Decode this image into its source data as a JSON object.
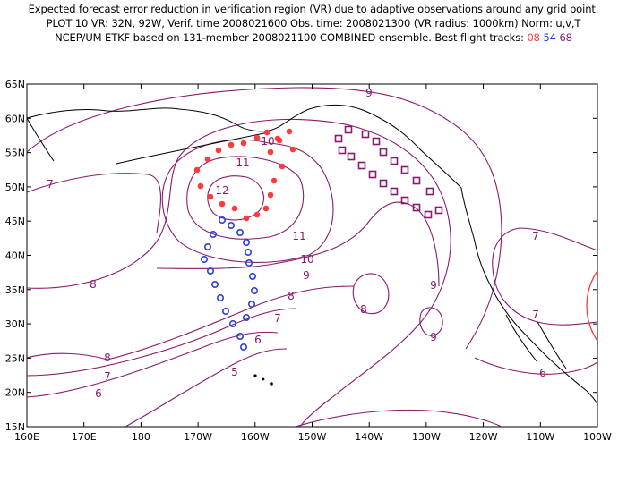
{
  "title": {
    "line1": "Expected forecast error reduction in verification region (VR) due to adaptive observations around any grid point.",
    "line2": "PLOT 10 VR: 32N, 92W, Verif. time 2008021600 Obs. time: 2008021300 (VR radius: 1000km) Norm: u,v,T",
    "line3_prefix": "NCEP/UM ETKF based on 131-member 2008021100 COMBINED ensemble.  Best flight tracks:",
    "track1": "08",
    "track2": "54",
    "track3": "68"
  },
  "axes": {
    "lat_labels": [
      "65N",
      "60N",
      "55N",
      "50N",
      "45N",
      "40N",
      "35N",
      "30N",
      "25N",
      "20N",
      "15N"
    ],
    "lon_labels": [
      "160E",
      "170E",
      "180",
      "170W",
      "160W",
      "150W",
      "140W",
      "130W",
      "120W",
      "110W",
      "100W"
    ]
  },
  "contour_labels": [
    "9",
    "10",
    "11",
    "12",
    "7",
    "8",
    "10",
    "11",
    "9",
    "8",
    "9",
    "7",
    "7",
    "8",
    "7",
    "6",
    "5",
    "6",
    "8",
    "6",
    "9",
    "7"
  ],
  "colors": {
    "contour": "#8a1a6e",
    "coast": "#000000",
    "track_08": "#ff3b3b",
    "track_54": "#2a3fd6",
    "track_68": "#8a1a6e",
    "verification_circle": "#ff3b3b"
  }
}
